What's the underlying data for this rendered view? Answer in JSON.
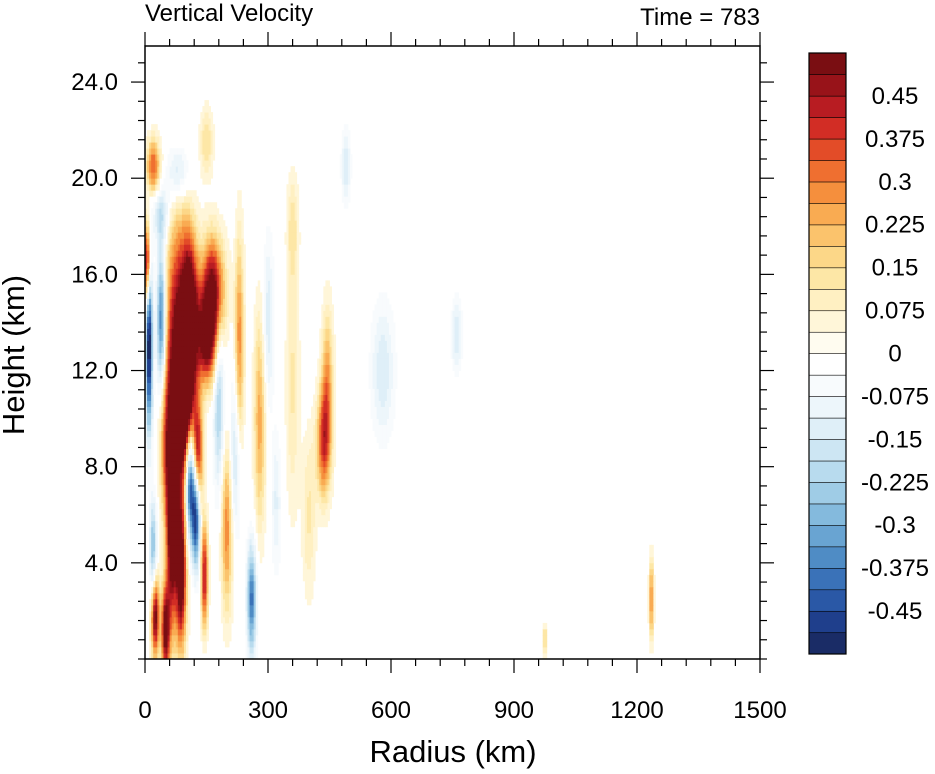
{
  "chart_data": {
    "type": "heatmap",
    "title": "Vertical Velocity",
    "time_label": "Time = 783",
    "xlabel": "Radius (km)",
    "ylabel": "Height (km)",
    "xlim": [
      0,
      1500
    ],
    "ylim": [
      0,
      25.5
    ],
    "x_ticks": [
      0,
      300,
      600,
      900,
      1200,
      1500
    ],
    "x_tick_labels": [
      "0",
      "300",
      "600",
      "900",
      "1200",
      "1500"
    ],
    "y_ticks": [
      4,
      8,
      12,
      16,
      20,
      24
    ],
    "y_tick_labels": [
      "4.0",
      "8.0",
      "12.0",
      "16.0",
      "20.0",
      "24.0"
    ],
    "colorbar": {
      "min": -0.525,
      "max": 0.525,
      "level_step": 0.0375,
      "labels": [
        {
          "value": 0.45,
          "text": "0.45"
        },
        {
          "value": 0.375,
          "text": "0.375"
        },
        {
          "value": 0.3,
          "text": "0.3"
        },
        {
          "value": 0.225,
          "text": "0.225"
        },
        {
          "value": 0.15,
          "text": "0.15"
        },
        {
          "value": 0.075,
          "text": "0.075"
        },
        {
          "value": 0,
          "text": "0"
        },
        {
          "value": -0.075,
          "text": "-0.075"
        },
        {
          "value": -0.15,
          "text": "-0.15"
        },
        {
          "value": -0.225,
          "text": "-0.225"
        },
        {
          "value": -0.3,
          "text": "-0.3"
        },
        {
          "value": -0.375,
          "text": "-0.375"
        },
        {
          "value": -0.45,
          "text": "-0.45"
        }
      ],
      "colors": [
        "#1a2c66",
        "#1f3f8c",
        "#2a58a6",
        "#3a72b8",
        "#4f8cc5",
        "#69a4d2",
        "#84badd",
        "#9fcce6",
        "#b8dbee",
        "#cde6f3",
        "#dfeff8",
        "#edf6fb",
        "#f8fbfd",
        "#ffffff",
        "#fffcf0",
        "#fff6d9",
        "#fff0c2",
        "#fde7a6",
        "#fcd788",
        "#fbc36c",
        "#f9ab52",
        "#f58f3d",
        "#ef6f30",
        "#e34c28",
        "#d22d25",
        "#b81c22",
        "#981319",
        "#7a0e12"
      ]
    },
    "features": [
      {
        "r": 80,
        "z": 12.0,
        "sr": 22,
        "sz": 4.2,
        "w": 0.6
      },
      {
        "r": 110,
        "z": 14.5,
        "sr": 14,
        "sz": 2.2,
        "w": 0.55
      },
      {
        "r": 165,
        "z": 15.3,
        "sr": 20,
        "sz": 1.6,
        "w": 0.55
      },
      {
        "r": 150,
        "z": 13.2,
        "sr": 18,
        "sz": 1.3,
        "w": 0.45
      },
      {
        "r": 100,
        "z": 10.8,
        "sr": 12,
        "sz": 1.8,
        "w": 0.55
      },
      {
        "r": 110,
        "z": 7.5,
        "sr": 9,
        "sz": 1.8,
        "w": -0.6
      },
      {
        "r": 128,
        "z": 8.5,
        "sr": 9,
        "sz": 1.6,
        "w": 0.5
      },
      {
        "r": 65,
        "z": 5.5,
        "sr": 9,
        "sz": 3.0,
        "w": 0.55
      },
      {
        "r": 88,
        "z": 3.5,
        "sr": 9,
        "sz": 2.2,
        "w": 0.55
      },
      {
        "r": 125,
        "z": 6.0,
        "sr": 7,
        "sz": 1.5,
        "w": -0.5
      },
      {
        "r": 50,
        "z": 1.2,
        "sr": 7,
        "sz": 1.3,
        "w": 0.55
      },
      {
        "r": 25,
        "z": 1.8,
        "sr": 7,
        "sz": 1.2,
        "w": 0.55
      },
      {
        "r": 145,
        "z": 3.5,
        "sr": 6,
        "sz": 1.5,
        "w": 0.45
      },
      {
        "r": 5,
        "z": 16.5,
        "sr": 5,
        "sz": 1.2,
        "w": 0.55
      },
      {
        "r": 10,
        "z": 13.0,
        "sr": 6,
        "sz": 2.5,
        "w": -0.55
      },
      {
        "r": 40,
        "z": 14.0,
        "sr": 8,
        "sz": 2.2,
        "w": -0.45
      },
      {
        "r": 180,
        "z": 11.0,
        "sr": 9,
        "sz": 2.8,
        "w": -0.25
      },
      {
        "r": 230,
        "z": 13.0,
        "sr": 8,
        "sz": 3.2,
        "w": 0.3
      },
      {
        "r": 280,
        "z": 10.0,
        "sr": 10,
        "sz": 3.2,
        "w": 0.25
      },
      {
        "r": 260,
        "z": 2.5,
        "sr": 8,
        "sz": 1.6,
        "w": -0.4
      },
      {
        "r": 300,
        "z": 14.0,
        "sr": 10,
        "sz": 2.5,
        "w": -0.15
      },
      {
        "r": 360,
        "z": 11.5,
        "sr": 12,
        "sz": 4.0,
        "w": 0.12
      },
      {
        "r": 435,
        "z": 9.0,
        "sr": 12,
        "sz": 1.6,
        "w": 0.35
      },
      {
        "r": 445,
        "z": 11.5,
        "sr": 10,
        "sz": 2.2,
        "w": 0.25
      },
      {
        "r": 400,
        "z": 6.0,
        "sr": 12,
        "sz": 2.5,
        "w": 0.12
      },
      {
        "r": 200,
        "z": 5.5,
        "sr": 10,
        "sz": 2.5,
        "w": 0.3
      },
      {
        "r": 220,
        "z": 8.5,
        "sr": 10,
        "sz": 2.5,
        "w": -0.2
      },
      {
        "r": 20,
        "z": 20.5,
        "sr": 12,
        "sz": 0.8,
        "w": 0.35
      },
      {
        "r": 80,
        "z": 20.2,
        "sr": 20,
        "sz": 0.9,
        "w": -0.2
      },
      {
        "r": 40,
        "z": 18.5,
        "sr": 15,
        "sz": 0.8,
        "w": -0.18
      },
      {
        "r": 150,
        "z": 21.5,
        "sr": 12,
        "sz": 1.0,
        "w": 0.15
      },
      {
        "r": 490,
        "z": 20.5,
        "sr": 8,
        "sz": 1.0,
        "w": -0.15
      },
      {
        "r": 360,
        "z": 18.0,
        "sr": 10,
        "sz": 1.5,
        "w": 0.12
      },
      {
        "r": 580,
        "z": 12.0,
        "sr": 20,
        "sz": 2.0,
        "w": -0.15
      },
      {
        "r": 760,
        "z": 13.5,
        "sr": 10,
        "sz": 1.0,
        "w": -0.15
      },
      {
        "r": 1235,
        "z": 2.5,
        "sr": 4,
        "sz": 1.2,
        "w": 0.3
      },
      {
        "r": 975,
        "z": 0.8,
        "sr": 3,
        "sz": 0.5,
        "w": 0.2
      },
      {
        "r": 50,
        "z": 9.0,
        "sr": 10,
        "sz": 2.0,
        "w": 0.2
      },
      {
        "r": 20,
        "z": 4.5,
        "sr": 6,
        "sz": 1.5,
        "w": -0.3
      },
      {
        "r": 320,
        "z": 6.5,
        "sr": 8,
        "sz": 2.0,
        "w": -0.12
      }
    ]
  }
}
